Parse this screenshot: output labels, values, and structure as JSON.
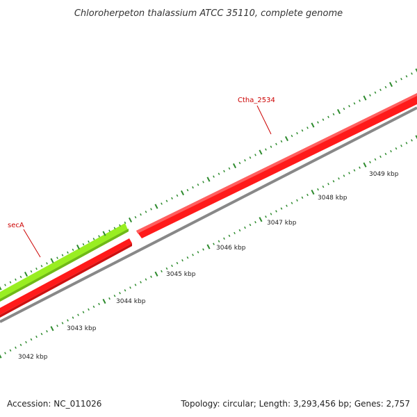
{
  "title": "Chloroherpeton thalassium ATCC 35110, complete genome",
  "footer": {
    "accession": "Accession: NC_011026",
    "summary": "Topology: circular; Length: 3,293,456 bp; Genes: 2,757"
  },
  "colors": {
    "forward_gene": "#ff1a1a",
    "reverse_gene": "#99ee22",
    "backbone": "#888888",
    "tick": "#2e8b2e",
    "label_line": "#cc0000"
  },
  "genes": [
    {
      "name": "secA",
      "strand": "forward-outer",
      "color": "reverse_gene"
    },
    {
      "name": "Ctha_2534",
      "strand": "forward",
      "color": "forward_gene"
    }
  ],
  "kbp_labels": [
    "3042 kbp",
    "3043 kbp",
    "3044 kbp",
    "3045 kbp",
    "3046 kbp",
    "3047 kbp",
    "3048 kbp",
    "3049 kbp"
  ]
}
